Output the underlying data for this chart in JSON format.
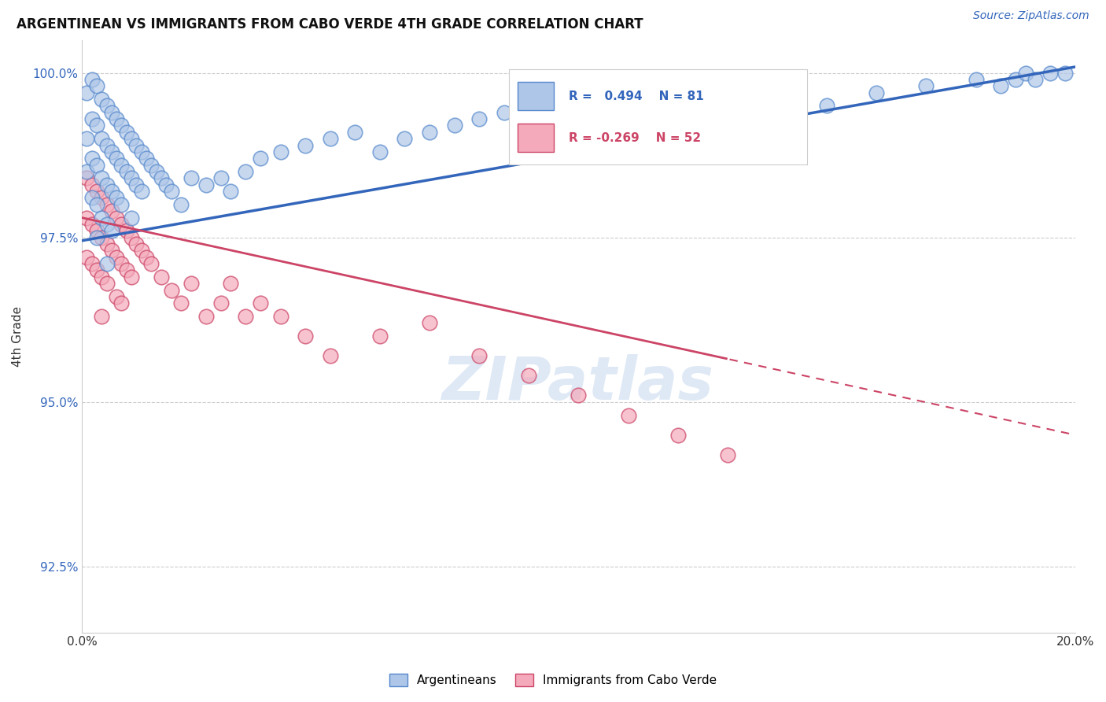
{
  "title": "ARGENTINEAN VS IMMIGRANTS FROM CABO VERDE 4TH GRADE CORRELATION CHART",
  "source": "Source: ZipAtlas.com",
  "ylabel": "4th Grade",
  "x_min": 0.0,
  "x_max": 0.2,
  "y_min": 0.915,
  "y_max": 1.005,
  "y_ticks": [
    0.925,
    0.95,
    0.975,
    1.0
  ],
  "y_tick_labels": [
    "92.5%",
    "95.0%",
    "97.5%",
    "100.0%"
  ],
  "x_ticks": [
    0.0,
    0.05,
    0.1,
    0.15,
    0.2
  ],
  "x_tick_labels": [
    "0.0%",
    "",
    "",
    "",
    "20.0%"
  ],
  "blue_fill_color": "#AEC6E8",
  "blue_edge_color": "#5588CC",
  "pink_fill_color": "#F4AABB",
  "pink_edge_color": "#CC4466",
  "blue_line_color": "#3366BB",
  "pink_line_color": "#CC4466",
  "grid_color": "#CCCCCC",
  "watermark_color": "#C5D8EE",
  "legend_R_blue": "0.494",
  "legend_N_blue": "81",
  "legend_R_pink": "-0.269",
  "legend_N_pink": "52",
  "legend_label_blue": "Argentineans",
  "legend_label_pink": "Immigrants from Cabo Verde",
  "blue_R": 0.494,
  "blue_intercept": 0.9745,
  "blue_slope": 0.132,
  "pink_R": -0.269,
  "pink_intercept": 0.978,
  "pink_slope": -0.165,
  "blue_scatter_x": [
    0.001,
    0.001,
    0.001,
    0.002,
    0.002,
    0.002,
    0.002,
    0.003,
    0.003,
    0.003,
    0.003,
    0.003,
    0.004,
    0.004,
    0.004,
    0.004,
    0.005,
    0.005,
    0.005,
    0.005,
    0.005,
    0.006,
    0.006,
    0.006,
    0.006,
    0.007,
    0.007,
    0.007,
    0.008,
    0.008,
    0.008,
    0.009,
    0.009,
    0.01,
    0.01,
    0.01,
    0.011,
    0.011,
    0.012,
    0.012,
    0.013,
    0.014,
    0.015,
    0.016,
    0.017,
    0.018,
    0.02,
    0.022,
    0.025,
    0.028,
    0.03,
    0.033,
    0.036,
    0.04,
    0.045,
    0.05,
    0.055,
    0.06,
    0.065,
    0.07,
    0.075,
    0.08,
    0.085,
    0.09,
    0.095,
    0.1,
    0.105,
    0.11,
    0.12,
    0.13,
    0.14,
    0.15,
    0.16,
    0.17,
    0.18,
    0.185,
    0.188,
    0.19,
    0.192,
    0.195,
    0.198
  ],
  "blue_scatter_y": [
    0.997,
    0.99,
    0.985,
    0.999,
    0.993,
    0.987,
    0.981,
    0.998,
    0.992,
    0.986,
    0.98,
    0.975,
    0.996,
    0.99,
    0.984,
    0.978,
    0.995,
    0.989,
    0.983,
    0.977,
    0.971,
    0.994,
    0.988,
    0.982,
    0.976,
    0.993,
    0.987,
    0.981,
    0.992,
    0.986,
    0.98,
    0.991,
    0.985,
    0.99,
    0.984,
    0.978,
    0.989,
    0.983,
    0.988,
    0.982,
    0.987,
    0.986,
    0.985,
    0.984,
    0.983,
    0.982,
    0.98,
    0.984,
    0.983,
    0.984,
    0.982,
    0.985,
    0.987,
    0.988,
    0.989,
    0.99,
    0.991,
    0.988,
    0.99,
    0.991,
    0.992,
    0.993,
    0.994,
    0.992,
    0.993,
    0.994,
    0.995,
    0.994,
    0.995,
    0.996,
    0.997,
    0.995,
    0.997,
    0.998,
    0.999,
    0.998,
    0.999,
    1.0,
    0.999,
    1.0,
    1.0
  ],
  "pink_scatter_x": [
    0.001,
    0.001,
    0.001,
    0.002,
    0.002,
    0.002,
    0.003,
    0.003,
    0.003,
    0.004,
    0.004,
    0.004,
    0.004,
    0.005,
    0.005,
    0.005,
    0.006,
    0.006,
    0.007,
    0.007,
    0.007,
    0.008,
    0.008,
    0.008,
    0.009,
    0.009,
    0.01,
    0.01,
    0.011,
    0.012,
    0.013,
    0.014,
    0.016,
    0.018,
    0.02,
    0.022,
    0.025,
    0.028,
    0.03,
    0.033,
    0.036,
    0.04,
    0.045,
    0.05,
    0.06,
    0.07,
    0.08,
    0.09,
    0.1,
    0.11,
    0.12,
    0.13
  ],
  "pink_scatter_y": [
    0.984,
    0.978,
    0.972,
    0.983,
    0.977,
    0.971,
    0.982,
    0.976,
    0.97,
    0.981,
    0.975,
    0.969,
    0.963,
    0.98,
    0.974,
    0.968,
    0.979,
    0.973,
    0.978,
    0.972,
    0.966,
    0.977,
    0.971,
    0.965,
    0.976,
    0.97,
    0.975,
    0.969,
    0.974,
    0.973,
    0.972,
    0.971,
    0.969,
    0.967,
    0.965,
    0.968,
    0.963,
    0.965,
    0.968,
    0.963,
    0.965,
    0.963,
    0.96,
    0.957,
    0.96,
    0.962,
    0.957,
    0.954,
    0.951,
    0.948,
    0.945,
    0.942
  ]
}
